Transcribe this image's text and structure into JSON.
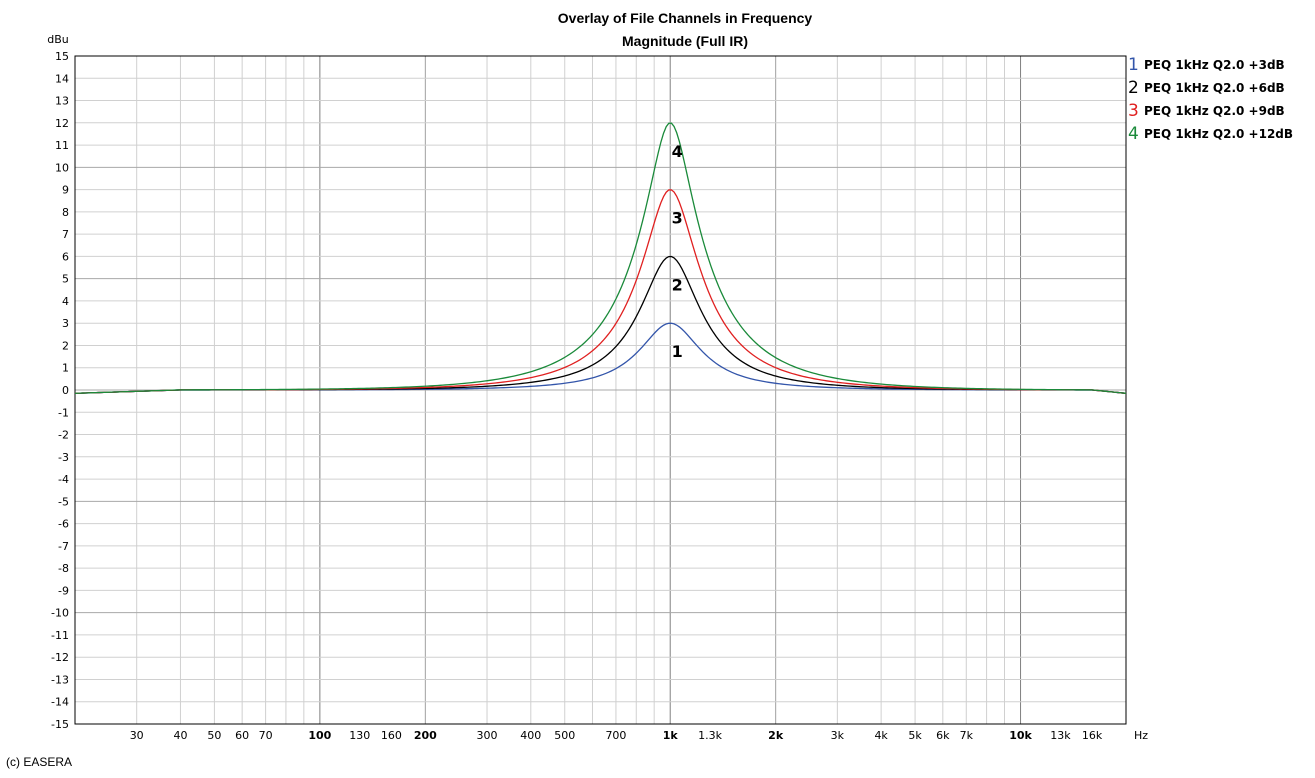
{
  "chart_data": {
    "type": "line",
    "title": "Overlay of File Channels in Frequency",
    "subtitle": "Magnitude (Full IR)",
    "ylabel": "dBu",
    "xlabel": "Hz",
    "ylim": [
      -15,
      15
    ],
    "xlim": [
      20,
      20000
    ],
    "x_scale": "log",
    "grid": true,
    "legend_position": "right",
    "y_ticks": [
      "15",
      "14",
      "13",
      "12",
      "11",
      "10",
      "9",
      "8",
      "7",
      "6",
      "5",
      "4",
      "3",
      "2",
      "1",
      "0",
      "-1",
      "-2",
      "-3",
      "-4",
      "-5",
      "-6",
      "-7",
      "-8",
      "-9",
      "-10",
      "-11",
      "-12",
      "-13",
      "-14",
      "-15"
    ],
    "x_ticks": [
      {
        "value": 30,
        "label": "30",
        "bold": false
      },
      {
        "value": 40,
        "label": "40",
        "bold": false
      },
      {
        "value": 50,
        "label": "50",
        "bold": false
      },
      {
        "value": 60,
        "label": "60",
        "bold": false
      },
      {
        "value": 70,
        "label": "70",
        "bold": false
      },
      {
        "value": 100,
        "label": "100",
        "bold": true
      },
      {
        "value": 130,
        "label": "130",
        "bold": false
      },
      {
        "value": 160,
        "label": "160",
        "bold": false
      },
      {
        "value": 200,
        "label": "200",
        "bold": true
      },
      {
        "value": 300,
        "label": "300",
        "bold": false
      },
      {
        "value": 400,
        "label": "400",
        "bold": false
      },
      {
        "value": 500,
        "label": "500",
        "bold": false
      },
      {
        "value": 700,
        "label": "700",
        "bold": false
      },
      {
        "value": 1000,
        "label": "1k",
        "bold": true
      },
      {
        "value": 1300,
        "label": "1.3k",
        "bold": false
      },
      {
        "value": 2000,
        "label": "2k",
        "bold": true
      },
      {
        "value": 3000,
        "label": "3k",
        "bold": false
      },
      {
        "value": 4000,
        "label": "4k",
        "bold": false
      },
      {
        "value": 5000,
        "label": "5k",
        "bold": false
      },
      {
        "value": 6000,
        "label": "6k",
        "bold": false
      },
      {
        "value": 7000,
        "label": "7k",
        "bold": false
      },
      {
        "value": 10000,
        "label": "10k",
        "bold": true
      },
      {
        "value": 13000,
        "label": "13k",
        "bold": false
      },
      {
        "value": 16000,
        "label": "16k",
        "bold": false
      }
    ],
    "series": [
      {
        "number": "1",
        "name": "PEQ 1kHz Q2.0 +3dB",
        "color": "#3355aa",
        "center_hz": 1000,
        "q": 2.0,
        "gain_db": 3
      },
      {
        "number": "2",
        "name": "PEQ 1kHz Q2.0 +6dB",
        "color": "#000000",
        "center_hz": 1000,
        "q": 2.0,
        "gain_db": 6
      },
      {
        "number": "3",
        "name": "PEQ 1kHz Q2.0 +9dB",
        "color": "#e02020",
        "center_hz": 1000,
        "q": 2.0,
        "gain_db": 9
      },
      {
        "number": "4",
        "name": "PEQ 1kHz Q2.0 +12dB",
        "color": "#1a8a3a",
        "center_hz": 1000,
        "q": 2.0,
        "gain_db": 12
      }
    ]
  },
  "footer": {
    "copyright": "(c) EASERA"
  }
}
